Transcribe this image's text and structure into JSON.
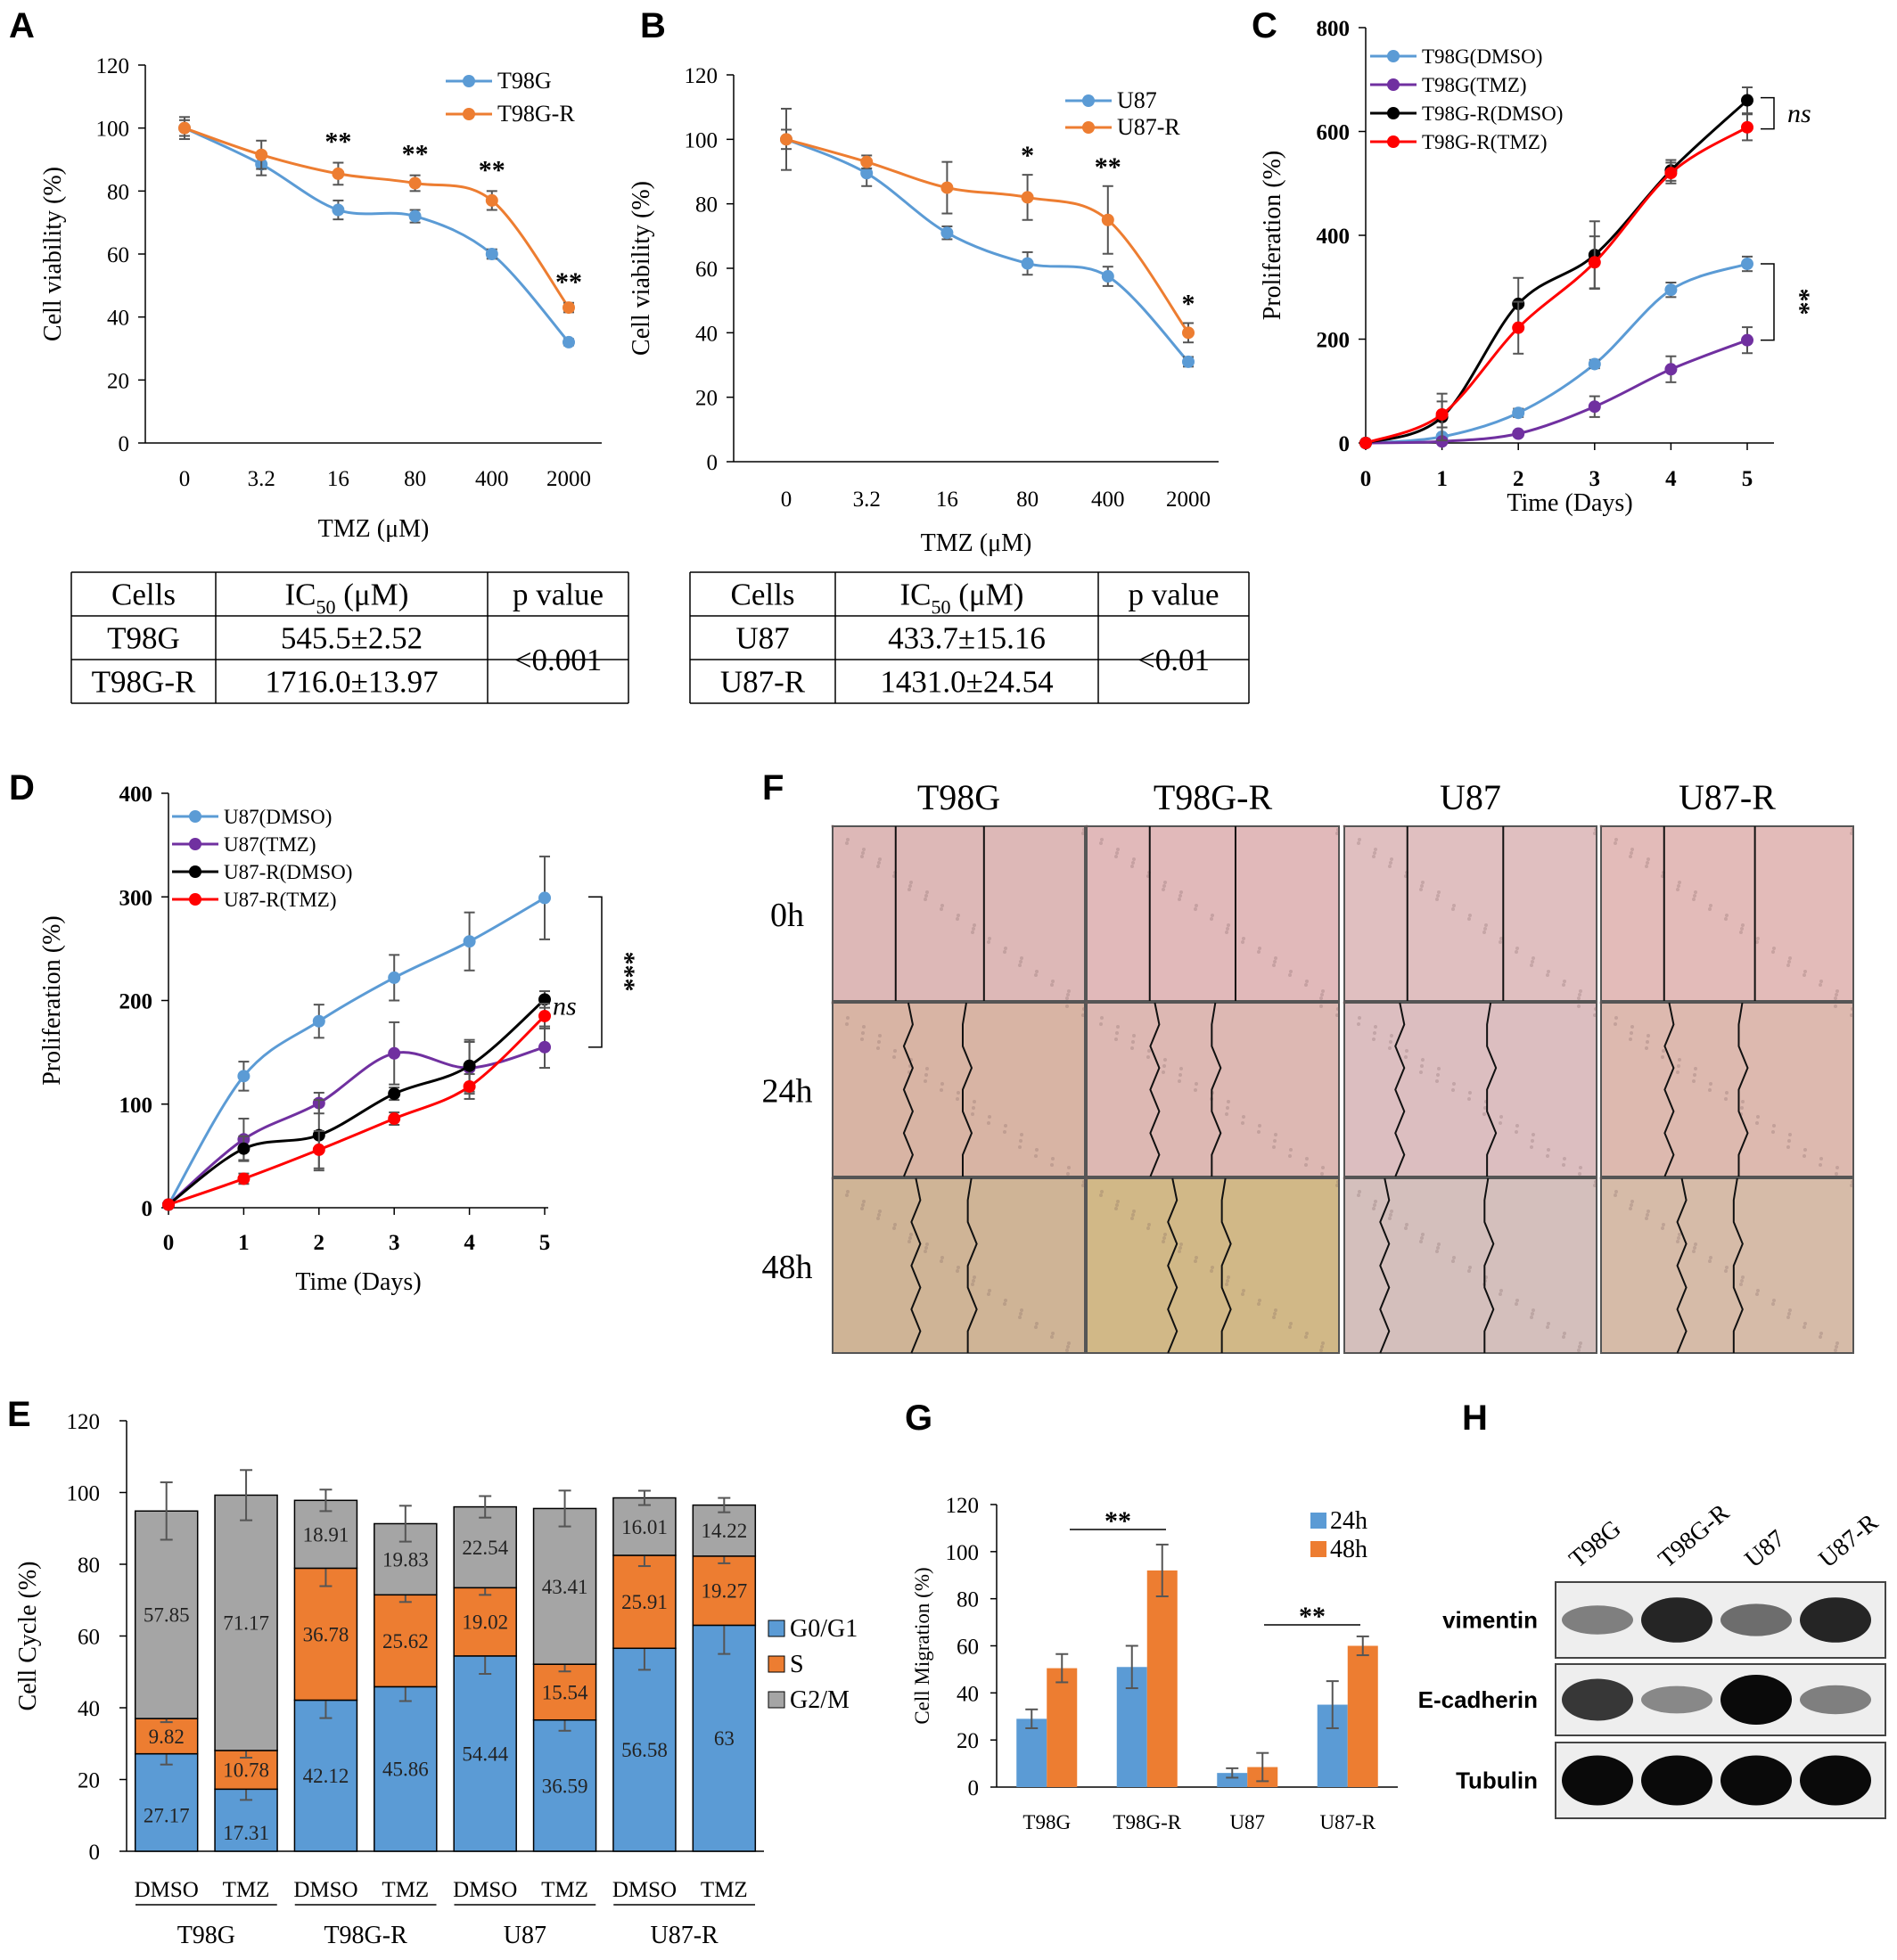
{
  "panels": {
    "A": {
      "label": "A"
    },
    "B": {
      "label": "B"
    },
    "C": {
      "label": "C"
    },
    "D": {
      "label": "D"
    },
    "E": {
      "label": "E"
    },
    "F": {
      "label": "F"
    },
    "G": {
      "label": "G"
    },
    "H": {
      "label": "H"
    }
  },
  "chart_data": [
    {
      "id": "A",
      "type": "line",
      "xlabel": "TMZ (μM)",
      "ylabel": "Cell viability (%)",
      "categories": [
        "0",
        "3.2",
        "16",
        "80",
        "400",
        "2000"
      ],
      "ylim": [
        0,
        120
      ],
      "yticks": [
        0,
        20,
        40,
        60,
        80,
        100,
        120
      ],
      "legend_position": "top-right",
      "series": [
        {
          "name": "T98G",
          "color": "#5B9BD5",
          "values": [
            100,
            88.5,
            74,
            72,
            60,
            32
          ],
          "errors": [
            2.5,
            3.5,
            3,
            2,
            1.5,
            1
          ]
        },
        {
          "name": "T98G-R",
          "color": "#ED7D31",
          "values": [
            100,
            91.5,
            85.5,
            82.5,
            77,
            43
          ],
          "errors": [
            3.5,
            4.5,
            3.5,
            2.5,
            3,
            1.5
          ]
        }
      ],
      "annotations": [
        {
          "index": 2,
          "text": "**"
        },
        {
          "index": 3,
          "text": "**"
        },
        {
          "index": 4,
          "text": "**"
        },
        {
          "index": 5,
          "text": "**"
        }
      ]
    },
    {
      "id": "B",
      "type": "line",
      "xlabel": "TMZ (μM)",
      "ylabel": "Cell viability (%)",
      "categories": [
        "0",
        "3.2",
        "16",
        "80",
        "400",
        "2000"
      ],
      "ylim": [
        0,
        120
      ],
      "yticks": [
        0,
        20,
        40,
        60,
        80,
        100,
        120
      ],
      "legend_position": "top-right",
      "series": [
        {
          "name": "U87",
          "color": "#5B9BD5",
          "values": [
            100,
            89.5,
            71,
            61.5,
            57.5,
            31
          ],
          "errors": [
            9.5,
            4,
            2,
            3.5,
            3,
            1.5
          ]
        },
        {
          "name": "U87-R",
          "color": "#ED7D31",
          "values": [
            100,
            93,
            85,
            82,
            75,
            40
          ],
          "errors": [
            3,
            2,
            8,
            7,
            10.5,
            3
          ]
        }
      ],
      "annotations": [
        {
          "index": 3,
          "text": "*"
        },
        {
          "index": 4,
          "text": "**"
        },
        {
          "index": 5,
          "text": "*"
        }
      ]
    },
    {
      "id": "C",
      "type": "line",
      "xlabel": "Time (Days)",
      "ylabel": "Proliferation (%)",
      "categories": [
        "0",
        "1",
        "2",
        "3",
        "4",
        "5"
      ],
      "ylim": [
        0,
        800
      ],
      "yticks": [
        0,
        200,
        400,
        600,
        800
      ],
      "legend_position": "top-left",
      "series": [
        {
          "name": "T98G(DMSO)",
          "color": "#5B9BD5",
          "values": [
            0,
            12,
            58,
            152,
            295,
            345
          ],
          "errors": [
            0,
            5,
            8,
            8,
            14,
            14
          ]
        },
        {
          "name": "T98G(TMZ)",
          "color": "#7030A0",
          "values": [
            0,
            3,
            18,
            70,
            142,
            198
          ],
          "errors": [
            0,
            3,
            5,
            20,
            25,
            25
          ]
        },
        {
          "name": "T98G-R(DMSO)",
          "color": "#000000",
          "values": [
            0,
            50,
            268,
            362,
            525,
            660
          ],
          "errors": [
            0,
            45,
            50,
            65,
            20,
            25
          ]
        },
        {
          "name": "T98G-R(TMZ)",
          "color": "#FF0000",
          "values": [
            0,
            55,
            222,
            348,
            520,
            608
          ],
          "errors": [
            0,
            25,
            50,
            50,
            20,
            25
          ]
        }
      ],
      "annotations": [
        {
          "text": "ns"
        },
        {
          "text": "**"
        }
      ]
    },
    {
      "id": "D",
      "type": "line",
      "xlabel": "Time (Days)",
      "ylabel": "Proliferation (%)",
      "categories": [
        "0",
        "1",
        "2",
        "3",
        "4",
        "5"
      ],
      "ylim": [
        0,
        400
      ],
      "yticks": [
        0,
        100,
        200,
        300,
        400
      ],
      "legend_position": "top-left",
      "series": [
        {
          "name": "U87(DMSO)",
          "color": "#5B9BD5",
          "values": [
            3,
            127,
            180,
            222,
            257,
            299
          ],
          "errors": [
            0,
            14,
            16,
            22,
            28,
            40
          ]
        },
        {
          "name": "U87(TMZ)",
          "color": "#7030A0",
          "values": [
            3,
            66,
            101,
            149,
            135,
            155
          ],
          "errors": [
            0,
            20,
            10,
            30,
            25,
            20
          ]
        },
        {
          "name": "U87-R(DMSO)",
          "color": "#000000",
          "values": [
            3,
            57,
            70,
            110,
            137,
            201
          ],
          "errors": [
            0,
            12,
            34,
            6,
            25,
            8
          ]
        },
        {
          "name": "U87-R(TMZ)",
          "color": "#FF0000",
          "values": [
            3,
            28,
            56,
            86,
            117,
            185
          ],
          "errors": [
            0,
            5,
            18,
            6,
            12,
            12
          ]
        }
      ],
      "annotations": [
        {
          "text": "ns"
        },
        {
          "text": "***"
        }
      ]
    },
    {
      "id": "E",
      "type": "bar",
      "stacked": true,
      "ylabel": "Cell Cycle (%)",
      "ylim": [
        0,
        120
      ],
      "yticks": [
        0,
        20,
        40,
        60,
        80,
        100,
        120
      ],
      "categories": [
        "DMSO",
        "TMZ",
        "DMSO",
        "TMZ",
        "DMSO",
        "TMZ",
        "DMSO",
        "TMZ"
      ],
      "groups": [
        "T98G",
        "T98G-R",
        "U87",
        "U87-R"
      ],
      "legend_position": "right",
      "series": [
        {
          "name": "G0/G1",
          "color": "#5B9BD5",
          "values": [
            27.17,
            17.31,
            42.12,
            45.86,
            54.44,
            36.59,
            56.58,
            63
          ]
        },
        {
          "name": "S",
          "color": "#ED7D31",
          "values": [
            9.82,
            10.78,
            36.78,
            25.62,
            19.02,
            15.54,
            25.91,
            19.27
          ]
        },
        {
          "name": "G2/M",
          "color": "#A5A5A5",
          "values": [
            57.85,
            71.17,
            18.91,
            19.83,
            22.54,
            43.41,
            16.01,
            14.22
          ]
        }
      ],
      "labels": {
        "G0/G1": [
          "27.17",
          "17.31",
          "42.12",
          "45.86",
          "54.44",
          "36.59",
          "56.58",
          "63"
        ],
        "S": [
          "9.82",
          "10.78",
          "36.78",
          "25.62",
          "19.02",
          "15.54",
          "25.91",
          "19.27"
        ],
        "G2/M": [
          "57.85",
          "71.17",
          "18.91",
          "19.83",
          "22.54",
          "43.41",
          "16.01",
          "14.22"
        ]
      },
      "errors": {
        "G0/G1": [
          3,
          3,
          5,
          4,
          5,
          3,
          6,
          8
        ],
        "S": [
          1,
          2,
          5,
          2,
          2,
          2,
          3,
          2
        ],
        "G2/M": [
          8,
          7,
          3,
          5,
          3,
          5,
          2,
          2
        ]
      }
    },
    {
      "id": "G",
      "type": "bar",
      "ylabel": "Cell Migration (%)",
      "ylim": [
        0,
        120
      ],
      "yticks": [
        0,
        20,
        40,
        60,
        80,
        100,
        120
      ],
      "categories": [
        "T98G",
        "T98G-R",
        "U87",
        "U87-R"
      ],
      "legend_position": "top-right",
      "series": [
        {
          "name": "24h",
          "color": "#5B9BD5",
          "values": [
            29,
            51,
            6,
            35
          ],
          "errors": [
            4,
            9,
            2,
            10
          ]
        },
        {
          "name": "48h",
          "color": "#ED7D31",
          "values": [
            50.5,
            92,
            8.5,
            60
          ],
          "errors": [
            6,
            11,
            6,
            4
          ]
        }
      ],
      "annotations": [
        {
          "text": "**"
        },
        {
          "text": "**"
        }
      ]
    }
  ],
  "tables": [
    {
      "headers": [
        "Cells",
        "IC",
        "50",
        " (μM)",
        "p value"
      ],
      "rows": [
        {
          "cell": "T98G",
          "ic50": "545.5±2.52"
        },
        {
          "cell": "T98G-R",
          "ic50": "1716.0±13.97"
        }
      ],
      "p_value": "<0.001"
    },
    {
      "headers": [
        "Cells",
        "IC",
        "50",
        " (μM)",
        "p value"
      ],
      "rows": [
        {
          "cell": "U87",
          "ic50": "433.7±15.16"
        },
        {
          "cell": "U87-R",
          "ic50": "1431.0±24.54"
        }
      ],
      "p_value": "<0.01"
    }
  ],
  "wound_panel": {
    "columns": [
      "T98G",
      "T98G-R",
      "U87",
      "U87-R"
    ],
    "rows": [
      "0h",
      "24h",
      "48h"
    ],
    "colors": [
      [
        "#DDB8B7",
        "#E1B9BA",
        "#E0BFC0",
        "#E3BBB9"
      ],
      [
        "#D8B4A4",
        "#DDB8B3",
        "#DCBEC0",
        "#DDB9AF"
      ],
      [
        "#CFB496",
        "#D1B887",
        "#D4BFBC",
        "#D6BBA8"
      ]
    ]
  },
  "western": {
    "lanes": [
      "T98G",
      "T98G-R",
      "U87",
      "U87-R"
    ],
    "rows": [
      {
        "name": "vimentin",
        "intensity": [
          0.35,
          0.85,
          0.45,
          0.85
        ]
      },
      {
        "name": "E-cadherin",
        "intensity": [
          0.75,
          0.3,
          1.0,
          0.35
        ]
      },
      {
        "name": "Tubulin",
        "intensity": [
          1.0,
          1.0,
          1.0,
          1.0
        ]
      }
    ]
  }
}
